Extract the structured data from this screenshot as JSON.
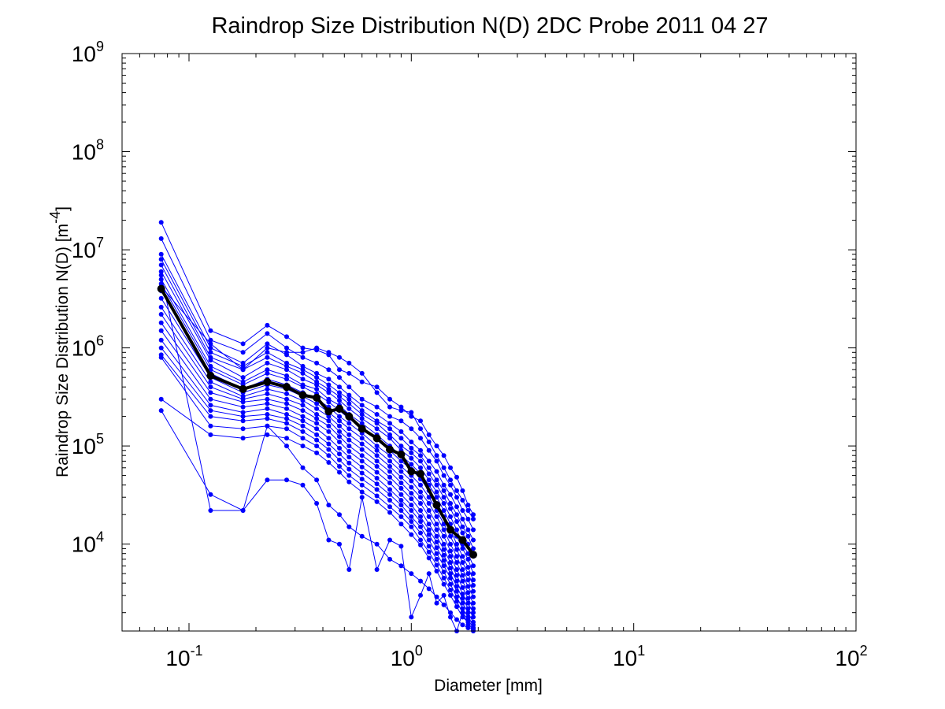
{
  "chart_data": {
    "type": "line",
    "title": "Raindrop Size Distribution N(D) 2DC Probe 2011 04 27",
    "xlabel": "Diameter [mm]",
    "ylabel": "Raindrop Size Distribution N(D) [m",
    "ylabel_exp": "-4",
    "ylabel_suffix": "]",
    "xscale": "log",
    "yscale": "log",
    "xlim": [
      0.05,
      100
    ],
    "ylim": [
      1300,
      1000000000
    ],
    "x_ticks": [
      {
        "value": 0.1,
        "base": "10",
        "exp": "-1"
      },
      {
        "value": 1,
        "base": "10",
        "exp": "0"
      },
      {
        "value": 10,
        "base": "10",
        "exp": "1"
      },
      {
        "value": 100,
        "base": "10",
        "exp": "2"
      }
    ],
    "y_ticks": [
      {
        "value": 10000,
        "base": "10",
        "exp": "4"
      },
      {
        "value": 100000,
        "base": "10",
        "exp": "5"
      },
      {
        "value": 1000000,
        "base": "10",
        "exp": "6"
      },
      {
        "value": 10000000,
        "base": "10",
        "exp": "7"
      },
      {
        "value": 100000000,
        "base": "10",
        "exp": "8"
      },
      {
        "value": 1000000000,
        "base": "10",
        "exp": "9"
      }
    ],
    "grid": false,
    "x": [
      0.075,
      0.125,
      0.175,
      0.225,
      0.275,
      0.325,
      0.375,
      0.425,
      0.475,
      0.525,
      0.6,
      0.7,
      0.8,
      0.9,
      1.0,
      1.1,
      1.2,
      1.3,
      1.4,
      1.5,
      1.6,
      1.7,
      1.8,
      1.9
    ],
    "mean_series": {
      "color": "#000000",
      "x": [
        0.075,
        0.125,
        0.175,
        0.225,
        0.275,
        0.325,
        0.375,
        0.425,
        0.475,
        0.525,
        0.6,
        0.7,
        0.8,
        0.9,
        1.0,
        1.1,
        1.3,
        1.5,
        1.7,
        1.9
      ],
      "values": [
        4000000,
        520000,
        380000,
        450000,
        400000,
        330000,
        310000,
        225000,
        240000,
        200000,
        150000,
        120000,
        92000,
        82000,
        55000,
        52000,
        25000,
        14000,
        11000,
        7800
      ]
    },
    "series_color": "#0000ff",
    "series": [
      {
        "values": [
          19000000,
          1500000,
          1100000,
          1700000,
          1300000,
          1000000,
          950000,
          850000,
          600000,
          550000,
          450000,
          400000,
          300000,
          250000,
          200000,
          180000,
          130000,
          100000,
          80000,
          60000,
          48000,
          35000,
          25000,
          20000
        ]
      },
      {
        "values": [
          13000000,
          1200000,
          900000,
          1400000,
          1000000,
          800000,
          700000,
          600000,
          500000,
          400000,
          300000,
          250000,
          200000,
          180000,
          150000,
          120000,
          90000,
          70000,
          50000,
          40000,
          30000,
          22000,
          18000,
          14000
        ]
      },
      {
        "values": [
          9000000,
          1000000,
          700000,
          1100000,
          850000,
          650000,
          550000,
          480000,
          400000,
          330000,
          260000,
          210000,
          170000,
          140000,
          110000,
          90000,
          70000,
          55000,
          40000,
          32000,
          24000,
          18000,
          14000,
          11000
        ]
      },
      {
        "values": [
          8000000,
          900000,
          650000,
          900000,
          700000,
          600000,
          500000,
          420000,
          350000,
          300000,
          230000,
          180000,
          150000,
          120000,
          95000,
          80000,
          60000,
          45000,
          35000,
          26000,
          20000,
          15000,
          12000,
          9000
        ]
      },
      {
        "values": [
          7000000,
          800000,
          600000,
          800000,
          650000,
          550000,
          450000,
          380000,
          320000,
          270000,
          210000,
          170000,
          130000,
          100000,
          85000,
          70000,
          52000,
          40000,
          30000,
          23000,
          17000,
          13000,
          10000,
          7500
        ]
      },
      {
        "values": [
          6000000,
          750000,
          500000,
          700000,
          600000,
          480000,
          420000,
          350000,
          290000,
          240000,
          190000,
          150000,
          120000,
          90000,
          75000,
          60000,
          45000,
          34000,
          26000,
          19000,
          14000,
          10000,
          8000,
          6000
        ]
      },
      {
        "values": [
          5000000,
          650000,
          450000,
          600000,
          520000,
          420000,
          380000,
          300000,
          260000,
          210000,
          170000,
          130000,
          100000,
          80000,
          65000,
          52000,
          40000,
          30000,
          22000,
          16000,
          12000,
          9000,
          7000,
          5000
        ]
      },
      {
        "values": [
          4500000,
          600000,
          420000,
          550000,
          480000,
          400000,
          340000,
          280000,
          230000,
          190000,
          150000,
          115000,
          90000,
          70000,
          58000,
          46000,
          35000,
          26000,
          19000,
          14000,
          10000,
          7500,
          5800,
          4300
        ]
      },
      {
        "values": [
          3800000,
          550000,
          380000,
          480000,
          420000,
          350000,
          300000,
          250000,
          200000,
          170000,
          135000,
          100000,
          80000,
          62000,
          50000,
          40000,
          30000,
          22000,
          16000,
          12000,
          8800,
          6500,
          5000,
          3800
        ]
      },
      {
        "values": [
          3200000,
          500000,
          350000,
          420000,
          380000,
          320000,
          270000,
          220000,
          180000,
          150000,
          120000,
          90000,
          70000,
          55000,
          44000,
          34000,
          26000,
          19000,
          14000,
          10000,
          7500,
          5500,
          4300,
          3300
        ]
      },
      {
        "values": [
          2600000,
          450000,
          320000,
          380000,
          340000,
          290000,
          240000,
          200000,
          160000,
          130000,
          105000,
          80000,
          62000,
          48000,
          38000,
          30000,
          22000,
          16000,
          12000,
          8500,
          6500,
          4800,
          3700,
          2900
        ]
      },
      {
        "values": [
          2200000,
          400000,
          300000,
          340000,
          300000,
          260000,
          210000,
          180000,
          140000,
          115000,
          92000,
          70000,
          55000,
          42000,
          33000,
          26000,
          19000,
          14000,
          10000,
          7500,
          5500,
          4200,
          3200,
          2500
        ]
      },
      {
        "values": [
          1800000,
          350000,
          280000,
          300000,
          270000,
          230000,
          190000,
          160000,
          125000,
          100000,
          80000,
          62000,
          48000,
          37000,
          29000,
          22000,
          16000,
          12000,
          8800,
          6500,
          4800,
          3600,
          2800,
          2200
        ]
      },
      {
        "values": [
          1500000,
          300000,
          250000,
          270000,
          240000,
          200000,
          170000,
          140000,
          110000,
          88000,
          70000,
          54000,
          42000,
          32000,
          25000,
          19000,
          14000,
          10500,
          7700,
          5700,
          4200,
          3100,
          2500,
          2000
        ]
      },
      {
        "values": [
          1200000,
          260000,
          220000,
          240000,
          210000,
          180000,
          150000,
          120000,
          95000,
          77000,
          61000,
          47000,
          36000,
          28000,
          22000,
          17000,
          12500,
          9200,
          6800,
          5000,
          3700,
          2800,
          2200,
          1800
        ]
      },
      {
        "values": [
          1000000,
          230000,
          200000,
          210000,
          190000,
          160000,
          130000,
          105000,
          83000,
          67000,
          53000,
          41000,
          32000,
          25000,
          19000,
          15000,
          11000,
          8000,
          6000,
          4500,
          3300,
          2500,
          2000,
          1600
        ]
      },
      {
        "values": [
          850000,
          200000,
          180000,
          190000,
          170000,
          140000,
          115000,
          92000,
          72000,
          58000,
          46000,
          36000,
          28000,
          22000,
          17000,
          13000,
          9500,
          7000,
          5200,
          3900,
          2900,
          2200,
          1800,
          1500
        ]
      },
      {
        "values": [
          800000,
          160000,
          150000,
          160000,
          150000,
          120000,
          100000,
          80000,
          62000,
          50000,
          40000,
          31000,
          24000,
          19000,
          15000,
          11000,
          8300,
          6100,
          4500,
          3400,
          2600,
          2000,
          1700,
          1400
        ]
      },
      {
        "values": [
          300000,
          130000,
          120000,
          130000,
          120000,
          100000,
          85000,
          68000,
          54000,
          43000,
          34000,
          27000,
          21000,
          16000,
          12500,
          9800,
          7200,
          5300,
          3900,
          3000,
          2300,
          1800,
          1600,
          1300
        ]
      },
      {
        "values": [
          230000,
          32000,
          22000,
          45000,
          45000,
          40000,
          26000,
          11000,
          10000,
          5500,
          30000,
          5500,
          11000,
          9500,
          1800,
          3000,
          5000,
          2500,
          3000,
          1800,
          1300,
          2000,
          1500,
          1400
        ]
      },
      {
        "values": [
          5500000,
          22000,
          22000,
          160000,
          100000,
          60000,
          45000,
          25000,
          20000,
          15000,
          12000,
          10000,
          7000,
          6000,
          5000,
          4200,
          3500,
          2900,
          2400,
          2000,
          1700,
          1500,
          1400,
          1350
        ]
      },
      {
        "values": [
          4200000,
          1100000,
          600000,
          1000000,
          900000,
          900000,
          1000000,
          900000,
          800000,
          700000,
          550000,
          350000,
          250000,
          230000,
          220000,
          150000,
          110000,
          80000,
          60000,
          45000,
          35000,
          28000,
          22000,
          18000
        ]
      }
    ]
  }
}
